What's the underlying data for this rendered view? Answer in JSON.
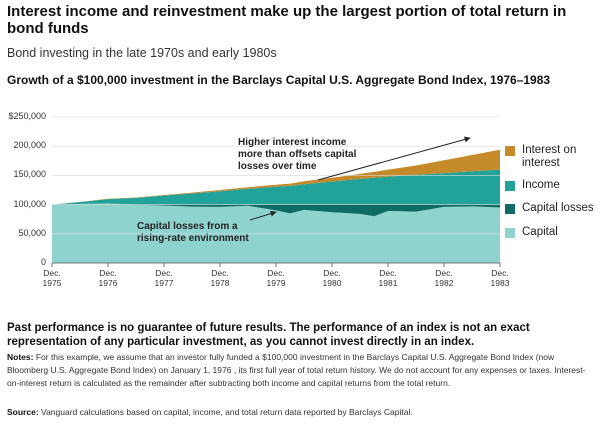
{
  "title": "Interest income and reinvestment make up the largest portion of total return in bond funds",
  "subtitle": "Bond investing in the late 1970s and early 1980s",
  "chart_title": "Growth of a $100,000 investment in the Barclays Capital U.S. Aggregate Bond Index, 1976–1983",
  "colors": {
    "interest_on_interest": "#c58a2a",
    "income": "#22a39a",
    "capital_losses": "#0f6b66",
    "capital": "#8fd3cf"
  },
  "chart_data": {
    "type": "area",
    "x_labels": [
      "Dec. 1975",
      "Dec. 1976",
      "Dec. 1977",
      "Dec. 1978",
      "Dec. 1979",
      "Dec. 1980",
      "Dec. 1981",
      "Dec. 1982",
      "Dec. 1983"
    ],
    "x": [
      "1975-12",
      "1976-06",
      "1976-12",
      "1977-06",
      "1977-12",
      "1978-06",
      "1978-12",
      "1979-06",
      "1979-12",
      "1980-03",
      "1980-06",
      "1980-12",
      "1981-06",
      "1981-09",
      "1981-12",
      "1982-06",
      "1982-12",
      "1983-06",
      "1983-12"
    ],
    "series": [
      {
        "name": "Capital",
        "values": [
          100000,
          101000,
          102000,
          99500,
          98500,
          96500,
          96000,
          98000,
          90000,
          85000,
          91000,
          87000,
          84000,
          80000,
          89000,
          88000,
          96000,
          97000,
          95000
        ]
      },
      {
        "name": "Capital losses",
        "values": [
          0,
          0,
          0,
          500,
          1500,
          3500,
          4000,
          2000,
          10000,
          15000,
          9000,
          13000,
          16000,
          20000,
          11000,
          12000,
          4000,
          3000,
          5000
        ]
      },
      {
        "name": "Income",
        "values": [
          0,
          3500,
          7500,
          11500,
          15500,
          19000,
          23000,
          27000,
          30500,
          32000,
          35000,
          39500,
          44000,
          46000,
          48000,
          51000,
          54000,
          57000,
          60000
        ]
      },
      {
        "name": "Interest on interest",
        "values": [
          0,
          200,
          400,
          600,
          1000,
          1500,
          2000,
          2800,
          3500,
          4000,
          5000,
          6500,
          8500,
          10000,
          12000,
          16000,
          22000,
          28000,
          34000
        ]
      }
    ],
    "y_ticks": [
      "0",
      "50,000",
      "100,000",
      "150,000",
      "200,000",
      "$250,000"
    ],
    "ylim": [
      0,
      250000
    ],
    "legend": [
      "Interest on interest",
      "Income",
      "Capital losses",
      "Capital"
    ],
    "legend_position": "right",
    "annotations": [
      {
        "text": "Higher interest income more than offsets capital losses over time"
      },
      {
        "text": "Capital losses from a rising-rate environment"
      }
    ]
  },
  "disclaimer": "Past performance is no guarantee of future results. The performance of an index is not an exact representation of any particular investment, as you cannot invest directly in an index.",
  "notes_label": "Notes:",
  "notes_text": "For this example, we assume that an investor fully funded a $100,000 investment in the Barclays Capital U.S. Aggregate Bond Index (now Bloomberg U.S. Aggregate Bond Index) on January 1, 1976 , its first full year of total return history. We do not account for any expenses or taxes. Interest-on-interest return is calculated as the remainder after subtracting both income and capital returns from the total return.",
  "source_label": "Source:",
  "source_text": "Vanguard calculations based on capital, income, and total return data reported by Barclays Capital."
}
